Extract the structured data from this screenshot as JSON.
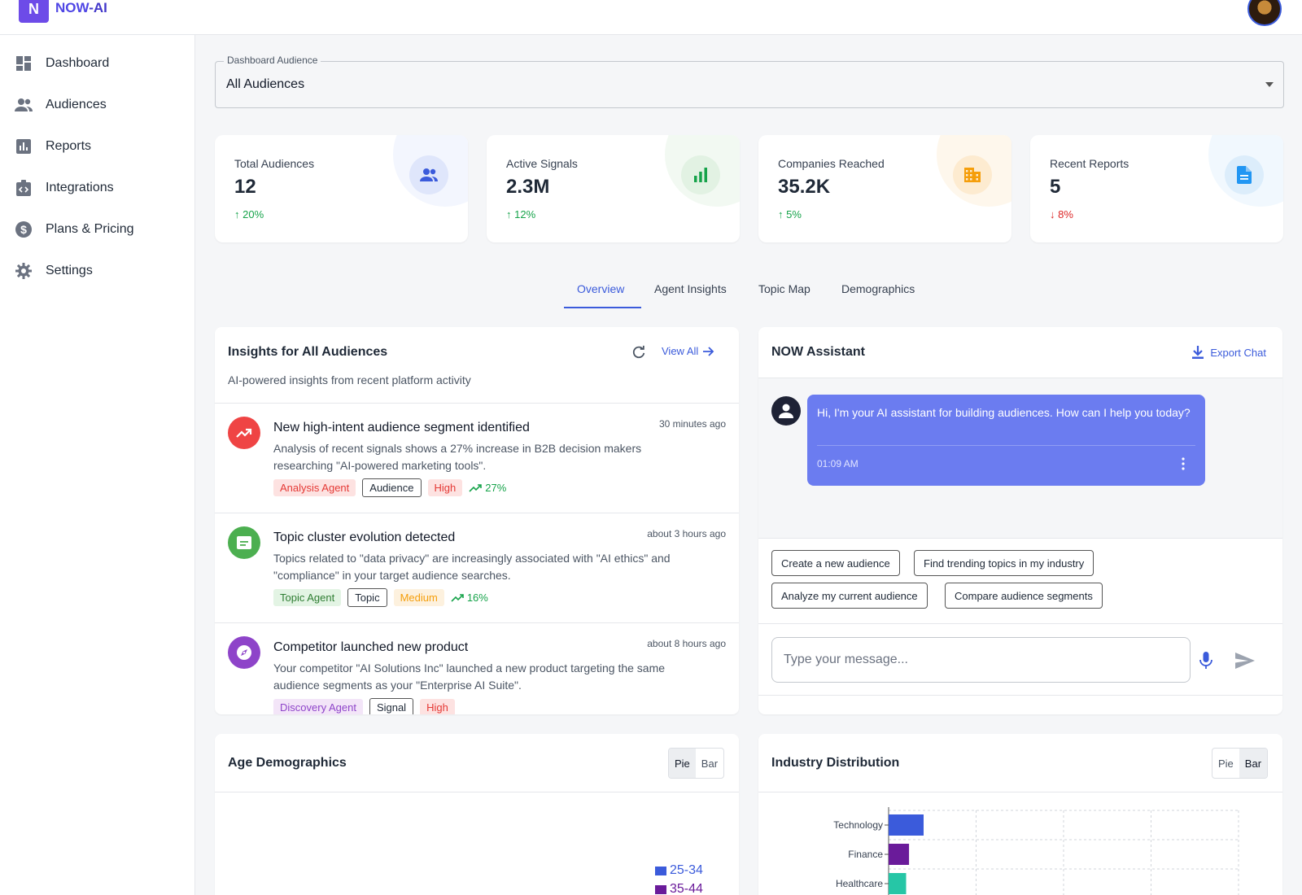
{
  "brand": {
    "logo_letter": "N",
    "name_part1": "NOW",
    "name_part2": "-AI"
  },
  "sidebar": {
    "items": [
      {
        "label": "Dashboard",
        "icon": "dashboard-icon"
      },
      {
        "label": "Audiences",
        "icon": "people-icon"
      },
      {
        "label": "Reports",
        "icon": "bar-chart-icon"
      },
      {
        "label": "Integrations",
        "icon": "integration-icon"
      },
      {
        "label": "Plans & Pricing",
        "icon": "dollar-icon"
      },
      {
        "label": "Settings",
        "icon": "gear-icon"
      }
    ]
  },
  "audience_select": {
    "label": "Dashboard Audience",
    "value": "All Audiences"
  },
  "stats": [
    {
      "label": "Total Audiences",
      "value": "12",
      "change": "20%",
      "direction": "up",
      "icon": "people-icon",
      "color": "#3b5bdb",
      "bg": "#eef2fd"
    },
    {
      "label": "Active Signals",
      "value": "2.3M",
      "change": "12%",
      "direction": "up",
      "icon": "bar-chart-icon",
      "color": "#16a34a",
      "bg": "#eef7ee"
    },
    {
      "label": "Companies Reached",
      "value": "35.2K",
      "change": "5%",
      "direction": "up",
      "icon": "building-icon",
      "color": "#f59e0b",
      "bg": "#fdf3e6"
    },
    {
      "label": "Recent Reports",
      "value": "5",
      "change": "8%",
      "direction": "down",
      "icon": "document-icon",
      "color": "#2196f3",
      "bg": "#e8f3fc"
    }
  ],
  "tabs": [
    {
      "label": "Overview",
      "active": true
    },
    {
      "label": "Agent Insights",
      "active": false
    },
    {
      "label": "Topic Map",
      "active": false
    },
    {
      "label": "Demographics",
      "active": false
    }
  ],
  "insights": {
    "title": "Insights for All Audiences",
    "subtitle": "AI-powered insights from recent platform activity",
    "view_all": "View All",
    "items": [
      {
        "title": "New high-intent audience segment identified",
        "time": "30 minutes ago",
        "description": "Analysis of recent signals shows a 27% increase in B2B decision makers researching \"AI-powered marketing tools\".",
        "agent": "Analysis Agent",
        "type": "Audience",
        "priority": "High",
        "trend": "27%",
        "icon": "trending-up-icon",
        "icon_color": "#ef4444"
      },
      {
        "title": "Topic cluster evolution detected",
        "time": "about 3 hours ago",
        "description": "Topics related to \"data privacy\" are increasingly associated with \"AI ethics\" and \"compliance\" in your target audience searches.",
        "agent": "Topic Agent",
        "type": "Topic",
        "priority": "Medium",
        "trend": "16%",
        "icon": "topic-icon",
        "icon_color": "#4caf50"
      },
      {
        "title": "Competitor launched new product",
        "time": "about 8 hours ago",
        "description": "Your competitor \"AI Solutions Inc\" launched a new product targeting the same audience segments as your \"Enterprise AI Suite\".",
        "agent": "Discovery Agent",
        "type": "Signal",
        "priority": "High",
        "icon": "compass-icon",
        "icon_color": "#8e44c9"
      }
    ]
  },
  "assistant": {
    "title": "NOW Assistant",
    "export_label": "Export Chat",
    "message": "Hi, I'm your AI assistant for building audiences. How can I help you today?",
    "message_time": "01:09 AM",
    "suggestions": [
      "Create a new audience",
      "Find trending topics in my industry",
      "Analyze my current audience",
      "Compare audience segments"
    ],
    "input_placeholder": "Type your message..."
  },
  "age_chart": {
    "title": "Age Demographics",
    "toggle": [
      "Pie",
      "Bar"
    ],
    "selected": "Pie",
    "legend": [
      {
        "label": "25-34",
        "color": "#3b5bdb"
      },
      {
        "label": "35-44",
        "color": "#6a1b9a"
      }
    ]
  },
  "chart_data": {
    "type": "bar",
    "title": "Industry Distribution",
    "toggle": [
      "Pie",
      "Bar"
    ],
    "selected": "Bar",
    "orientation": "horizontal",
    "categories": [
      "Technology",
      "Finance",
      "Healthcare"
    ],
    "colors": [
      "#3b5bdb",
      "#6a1b9a",
      "#26c6a6"
    ],
    "values": [
      1.2,
      0.7,
      0.6
    ],
    "grid": true
  }
}
